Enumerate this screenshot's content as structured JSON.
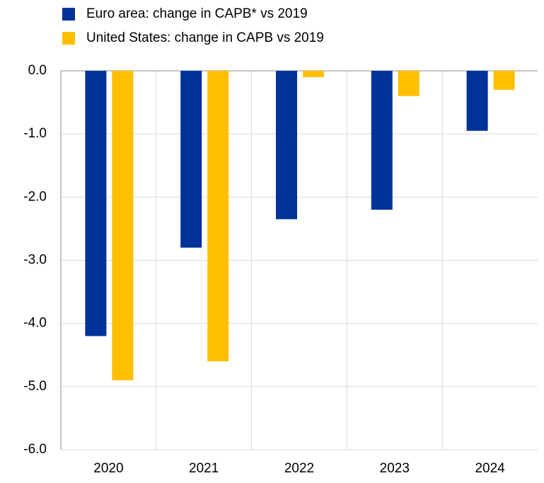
{
  "chart_data": {
    "type": "bar",
    "categories": [
      "2020",
      "2021",
      "2022",
      "2023",
      "2024"
    ],
    "series": [
      {
        "name": "Euro area: change in CAPB* vs 2019",
        "color": "#003299",
        "values": [
          -4.2,
          -2.8,
          -2.35,
          -2.2,
          -0.95
        ]
      },
      {
        "name": "United States: change in CAPB vs 2019",
        "color": "#ffbf00",
        "values": [
          -4.9,
          -4.6,
          -0.1,
          -0.4,
          -0.3
        ]
      }
    ],
    "ylim": [
      -6,
      0
    ],
    "yticks": [
      {
        "value": 0,
        "label": "0.0"
      },
      {
        "value": -1,
        "label": "-1.0"
      },
      {
        "value": -2,
        "label": "-2.0"
      },
      {
        "value": -3,
        "label": "-3.0"
      },
      {
        "value": -4,
        "label": "-4.0"
      },
      {
        "value": -5,
        "label": "-5.0"
      },
      {
        "value": -6,
        "label": "-6.0"
      }
    ],
    "grid": true,
    "legend": "top-left"
  }
}
